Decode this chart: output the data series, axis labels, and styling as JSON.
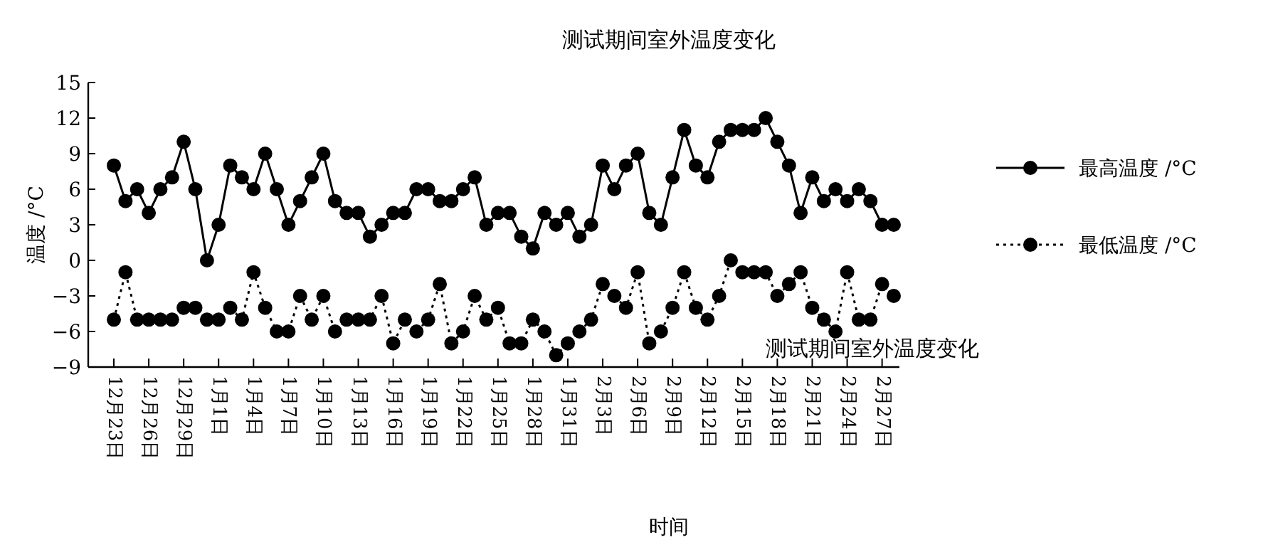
{
  "chart_data": {
    "type": "line",
    "title": "测试期间室外温度变化",
    "xlabel": "时间",
    "ylabel": "温度 /°C",
    "annotations": [
      "测试期间室外温度变化"
    ],
    "categories": [
      "12月23日",
      null,
      null,
      "12月26日",
      null,
      null,
      "12月29日",
      null,
      null,
      "1月1日",
      null,
      null,
      "1月4日",
      null,
      null,
      "1月7日",
      null,
      null,
      "1月10日",
      null,
      null,
      "1月13日",
      null,
      null,
      "1月16日",
      null,
      null,
      "1月19日",
      null,
      null,
      "1月22日",
      null,
      null,
      "1月25日",
      null,
      null,
      "1月28日",
      null,
      null,
      "1月31日",
      null,
      null,
      "2月3日",
      null,
      null,
      "2月6日",
      null,
      null,
      "2月9日",
      null,
      null,
      "2月12日",
      null,
      null,
      "2月15日",
      null,
      null,
      "2月18日",
      null,
      null,
      "2月21日",
      null,
      null,
      "2月24日",
      null,
      null,
      "2月27日",
      null
    ],
    "series": [
      {
        "name": "最高温度 /°C",
        "color": "#000000",
        "line_style": "solid",
        "values": [
          8,
          5,
          6,
          4,
          6,
          7,
          10,
          6,
          0,
          3,
          8,
          7,
          6,
          9,
          6,
          3,
          5,
          7,
          9,
          5,
          4,
          4,
          2,
          3,
          4,
          4,
          6,
          6,
          5,
          5,
          6,
          7,
          3,
          4,
          4,
          2,
          1,
          4,
          3,
          4,
          2,
          3,
          8,
          6,
          8,
          9,
          4,
          3,
          7,
          11,
          8,
          7,
          10,
          11,
          11,
          11,
          12,
          10,
          8,
          4,
          7,
          5,
          6,
          5,
          6,
          5,
          3,
          3
        ]
      },
      {
        "name": "最低温度 /°C",
        "color": "#000000",
        "line_style": "dotted",
        "values": [
          -5,
          -1,
          -5,
          -5,
          -5,
          -5,
          -4,
          -4,
          -5,
          -5,
          -4,
          -5,
          -1,
          -4,
          -6,
          -6,
          -3,
          -5,
          -3,
          -6,
          -5,
          -5,
          -5,
          -3,
          -7,
          -5,
          -6,
          -5,
          -2,
          -7,
          -6,
          -3,
          -5,
          -4,
          -7,
          -7,
          -5,
          -6,
          -8,
          -7,
          -6,
          -5,
          -2,
          -3,
          -4,
          -1,
          -7,
          -6,
          -4,
          -1,
          -4,
          -5,
          -3,
          0,
          -1,
          -1,
          -1,
          -3,
          -2,
          -1,
          -4,
          -5,
          -6,
          -1,
          -5,
          -5,
          -2,
          -3
        ]
      }
    ],
    "ylim": [
      -9,
      15
    ],
    "yticks": [
      -9,
      -6,
      -3,
      0,
      3,
      6,
      9,
      12,
      15
    ],
    "marker": "circle",
    "legend": "right",
    "grid": false
  }
}
